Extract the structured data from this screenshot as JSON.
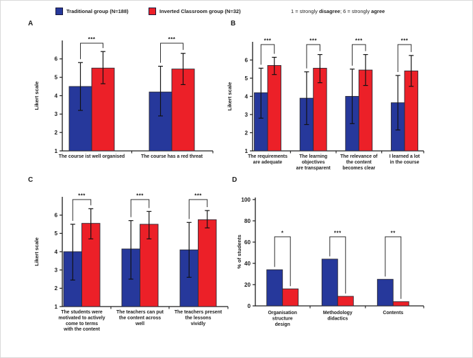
{
  "legend": {
    "items": [
      {
        "label": "Traditional group (N=188)",
        "color": "#26389b"
      },
      {
        "label": "Inverted Classroom group (N=32)",
        "color": "#ec2028"
      }
    ],
    "scale_note": {
      "s0": "1 = strongly ",
      "s1": "disagree",
      "s2": "; 6 = strongly ",
      "s3": "agree"
    }
  },
  "colors": {
    "traditional": "#26389b",
    "inverted": "#ec2028",
    "bar_border": "#2b2b35",
    "axis": "#1a1a1a",
    "bracket": "#2b2b2b"
  },
  "chart_data": [
    {
      "panel": "A",
      "type": "bar",
      "ylabel": "Likert scale",
      "ylim": [
        1,
        7
      ],
      "yticks": [
        1,
        2,
        3,
        4,
        5,
        6
      ],
      "categories": [
        [
          "The course ist well organised"
        ],
        [
          "The course has a red threat"
        ]
      ],
      "series": [
        {
          "name": "Traditional group (N=188)",
          "color": "#26389b",
          "values": [
            4.5,
            4.2
          ],
          "err_low": [
            3.2,
            2.9
          ],
          "err_high": [
            5.8,
            5.6
          ]
        },
        {
          "name": "Inverted Classroom group (N=32)",
          "color": "#ec2028",
          "values": [
            5.5,
            5.45
          ],
          "err_low": [
            4.65,
            4.6
          ],
          "err_high": [
            6.4,
            6.3
          ]
        }
      ],
      "significance": [
        "***",
        "***"
      ]
    },
    {
      "panel": "B",
      "type": "bar",
      "ylabel": "Likert scale",
      "ylim": [
        1,
        7
      ],
      "yticks": [
        1,
        2,
        3,
        4,
        5,
        6
      ],
      "categories": [
        [
          "The requirements",
          "are adequate"
        ],
        [
          "The learning",
          "objectives",
          "are transparent"
        ],
        [
          "The relevance of",
          "the content",
          "becomes clear"
        ],
        [
          "I learned a lot",
          "in the course"
        ]
      ],
      "series": [
        {
          "name": "Traditional group (N=188)",
          "color": "#26389b",
          "values": [
            4.2,
            3.9,
            4.0,
            3.65
          ],
          "err_low": [
            2.8,
            2.45,
            2.5,
            2.15
          ],
          "err_high": [
            5.55,
            5.35,
            5.5,
            5.15
          ]
        },
        {
          "name": "Inverted Classroom group (N=32)",
          "color": "#ec2028",
          "values": [
            5.7,
            5.55,
            5.45,
            5.4
          ],
          "err_low": [
            5.2,
            4.75,
            4.6,
            4.55
          ],
          "err_high": [
            6.15,
            6.3,
            6.3,
            6.25
          ]
        }
      ],
      "significance": [
        "***",
        "***",
        "***",
        "***"
      ]
    },
    {
      "panel": "C",
      "type": "bar",
      "ylabel": "Likert scale",
      "ylim": [
        1,
        7
      ],
      "yticks": [
        1,
        2,
        3,
        4,
        5,
        6
      ],
      "categories": [
        [
          "The students were",
          "motivated to actively",
          "come to terms",
          "with the content"
        ],
        [
          "The teachers can put",
          "the content across",
          "well"
        ],
        [
          "The teachers present",
          "the lessons",
          "vividly"
        ]
      ],
      "series": [
        {
          "name": "Traditional group (N=188)",
          "color": "#26389b",
          "values": [
            4.0,
            4.15,
            4.1
          ],
          "err_low": [
            2.45,
            2.5,
            2.6
          ],
          "err_high": [
            5.5,
            5.7,
            5.6
          ]
        },
        {
          "name": "Inverted Classroom group (N=32)",
          "color": "#ec2028",
          "values": [
            5.55,
            5.5,
            5.75
          ],
          "err_low": [
            4.7,
            4.7,
            5.3
          ],
          "err_high": [
            6.35,
            6.2,
            6.25
          ]
        }
      ],
      "significance": [
        "***",
        "***",
        "***"
      ]
    },
    {
      "panel": "D",
      "type": "bar",
      "ylabel": "% of students",
      "ylim": [
        0,
        100
      ],
      "yticks": [
        0,
        20,
        40,
        60,
        80,
        100
      ],
      "categories": [
        [
          "Organisation",
          "structure",
          "design"
        ],
        [
          "Methodology",
          "didactics"
        ],
        [
          "Contents"
        ]
      ],
      "series": [
        {
          "name": "Traditional group (N=188)",
          "color": "#26389b",
          "values": [
            34,
            44,
            25
          ]
        },
        {
          "name": "Inverted Classroom group (N=32)",
          "color": "#ec2028",
          "values": [
            16,
            9,
            4
          ]
        }
      ],
      "significance": [
        "*",
        "***",
        "**"
      ],
      "bracket_level": 65
    }
  ]
}
